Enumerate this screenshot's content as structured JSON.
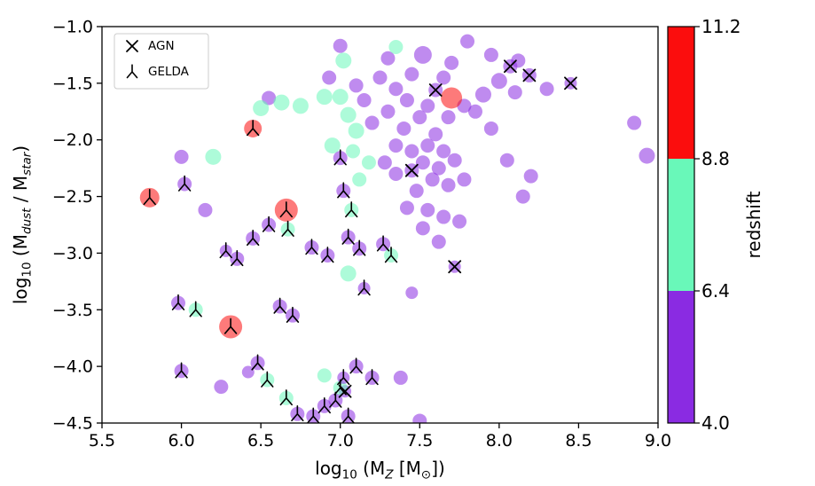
{
  "chart_data": {
    "type": "scatter",
    "title": "",
    "xlabel_parts": [
      [
        "log",
        0
      ],
      [
        "10",
        1
      ],
      [
        " (M",
        0
      ],
      [
        "Z",
        2
      ],
      [
        " [M",
        0
      ],
      [
        "⊙",
        1
      ],
      [
        "])",
        0
      ]
    ],
    "ylabel_parts": [
      [
        "log",
        0
      ],
      [
        "10",
        1
      ],
      [
        " (M",
        0
      ],
      [
        "dust",
        2
      ],
      [
        " / M",
        0
      ],
      [
        "star",
        2
      ],
      [
        ")",
        0
      ]
    ],
    "xlim": [
      5.5,
      9.0
    ],
    "ylim": [
      -4.5,
      -1.0
    ],
    "xticks": [
      5.5,
      6.0,
      6.5,
      7.0,
      7.5,
      8.0,
      8.5,
      9.0
    ],
    "xtick_labels": [
      "5.5",
      "6.0",
      "6.5",
      "7.0",
      "7.5",
      "8.0",
      "8.5",
      "9.0"
    ],
    "yticks": [
      -1.0,
      -1.5,
      -2.0,
      -2.5,
      -3.0,
      -3.5,
      -4.0,
      -4.5
    ],
    "ytick_labels": [
      "−1.0",
      "−1.5",
      "−2.0",
      "−2.5",
      "−3.0",
      "−3.5",
      "−4.0",
      "−4.5"
    ],
    "grid": false,
    "point_alpha": 0.55,
    "marker_color": "#000000",
    "colors": {
      "low": "#8A2BE2",
      "mid": "#69F8B9",
      "high": "#FB0D0D"
    },
    "legend": {
      "position": "upper-left",
      "entries": [
        {
          "label": "AGN",
          "marker": "x"
        },
        {
          "label": "GELDA",
          "marker": "tri"
        }
      ]
    },
    "colorbar": {
      "label": "redshift",
      "min": 4.0,
      "max": 11.2,
      "ticks": [
        4.0,
        6.4,
        8.8,
        11.2
      ],
      "tick_labels": [
        "4.0",
        "6.4",
        "8.8",
        "11.2"
      ],
      "segments": [
        {
          "range": [
            4.0,
            6.4
          ],
          "color": "#8A2BE2"
        },
        {
          "range": [
            6.4,
            8.8
          ],
          "color": "#69F8B9"
        },
        {
          "range": [
            8.8,
            11.2
          ],
          "color": "#FB0D0D"
        }
      ]
    },
    "points_format": [
      "x",
      "y",
      "color_bin(0=z4-6.4,1=z6.4-8.8,2=z8.8-11.2)",
      "radius_px",
      "marker(0=none,1=AGN_x,2=GELDA_tri)"
    ],
    "points": [
      [
        7.45,
        -2.27,
        0,
        8,
        1
      ],
      [
        7.6,
        -1.56,
        0,
        8,
        1
      ],
      [
        8.07,
        -1.35,
        0,
        8,
        1
      ],
      [
        8.19,
        -1.43,
        0,
        8,
        1
      ],
      [
        8.45,
        -1.5,
        0,
        7,
        1
      ],
      [
        7.72,
        -3.12,
        0,
        7,
        1
      ],
      [
        7.03,
        -4.22,
        0,
        7,
        1
      ],
      [
        5.8,
        -2.51,
        2,
        11,
        2
      ],
      [
        6.45,
        -1.9,
        2,
        10,
        2
      ],
      [
        6.66,
        -2.62,
        2,
        13,
        2
      ],
      [
        6.31,
        -3.65,
        2,
        13,
        2
      ],
      [
        6.02,
        -2.39,
        0,
        8,
        2
      ],
      [
        6.55,
        -2.75,
        0,
        8,
        2
      ],
      [
        6.67,
        -2.79,
        1,
        8,
        2
      ],
      [
        6.45,
        -2.87,
        0,
        8,
        2
      ],
      [
        6.35,
        -3.05,
        0,
        8,
        2
      ],
      [
        6.28,
        -2.98,
        0,
        7,
        2
      ],
      [
        6.82,
        -2.95,
        0,
        8,
        2
      ],
      [
        6.92,
        -3.02,
        0,
        8,
        2
      ],
      [
        7.05,
        -2.86,
        0,
        8,
        2
      ],
      [
        7.12,
        -2.96,
        0,
        8,
        2
      ],
      [
        7.27,
        -2.92,
        0,
        8,
        2
      ],
      [
        7.32,
        -3.02,
        1,
        8,
        2
      ],
      [
        7.0,
        -2.16,
        0,
        8,
        2
      ],
      [
        7.02,
        -2.45,
        0,
        8,
        2
      ],
      [
        7.07,
        -2.62,
        1,
        8,
        2
      ],
      [
        7.15,
        -3.31,
        0,
        7,
        2
      ],
      [
        5.98,
        -3.44,
        0,
        8,
        2
      ],
      [
        6.09,
        -3.5,
        1,
        8,
        2
      ],
      [
        6.62,
        -3.47,
        0,
        8,
        2
      ],
      [
        6.7,
        -3.55,
        0,
        8,
        2
      ],
      [
        6.0,
        -4.04,
        0,
        8,
        2
      ],
      [
        6.48,
        -3.97,
        0,
        8,
        2
      ],
      [
        6.54,
        -4.12,
        1,
        8,
        2
      ],
      [
        6.66,
        -4.28,
        1,
        8,
        2
      ],
      [
        6.73,
        -4.42,
        0,
        8,
        2
      ],
      [
        6.83,
        -4.44,
        0,
        8,
        2
      ],
      [
        6.9,
        -4.35,
        0,
        8,
        2
      ],
      [
        6.97,
        -4.3,
        0,
        8,
        2
      ],
      [
        7.0,
        -4.19,
        1,
        8,
        2
      ],
      [
        7.05,
        -4.44,
        0,
        8,
        2
      ],
      [
        7.1,
        -4.0,
        0,
        8,
        2
      ],
      [
        7.2,
        -4.1,
        0,
        8,
        2
      ],
      [
        7.02,
        -4.1,
        0,
        7,
        2
      ],
      [
        7.0,
        -1.17,
        0,
        8,
        0
      ],
      [
        7.3,
        -1.28,
        0,
        8,
        0
      ],
      [
        7.52,
        -1.25,
        0,
        10,
        0
      ],
      [
        7.8,
        -1.13,
        0,
        8,
        0
      ],
      [
        7.95,
        -1.25,
        0,
        8,
        0
      ],
      [
        7.7,
        -1.32,
        0,
        8,
        0
      ],
      [
        7.45,
        -1.42,
        0,
        8,
        0
      ],
      [
        7.25,
        -1.45,
        0,
        8,
        0
      ],
      [
        6.93,
        -1.45,
        0,
        8,
        0
      ],
      [
        7.1,
        -1.52,
        0,
        8,
        0
      ],
      [
        7.35,
        -1.55,
        0,
        8,
        0
      ],
      [
        7.65,
        -1.45,
        0,
        8,
        0
      ],
      [
        8.0,
        -1.48,
        0,
        9,
        0
      ],
      [
        8.12,
        -1.3,
        0,
        8,
        0
      ],
      [
        8.3,
        -1.55,
        0,
        8,
        0
      ],
      [
        7.15,
        -1.65,
        0,
        8,
        0
      ],
      [
        7.42,
        -1.65,
        0,
        8,
        0
      ],
      [
        7.55,
        -1.7,
        0,
        8,
        0
      ],
      [
        7.78,
        -1.7,
        0,
        8,
        0
      ],
      [
        7.9,
        -1.6,
        0,
        9,
        0
      ],
      [
        8.1,
        -1.58,
        0,
        8,
        0
      ],
      [
        7.3,
        -1.75,
        0,
        8,
        0
      ],
      [
        7.5,
        -1.8,
        0,
        8,
        0
      ],
      [
        7.68,
        -1.8,
        0,
        8,
        0
      ],
      [
        7.85,
        -1.75,
        0,
        8,
        0
      ],
      [
        7.95,
        -1.9,
        0,
        8,
        0
      ],
      [
        7.6,
        -1.95,
        0,
        8,
        0
      ],
      [
        7.4,
        -1.9,
        0,
        8,
        0
      ],
      [
        7.2,
        -1.85,
        0,
        8,
        0
      ],
      [
        8.85,
        -1.85,
        0,
        8,
        0
      ],
      [
        8.93,
        -2.14,
        0,
        9,
        0
      ],
      [
        7.35,
        -2.05,
        0,
        8,
        0
      ],
      [
        7.45,
        -2.1,
        0,
        8,
        0
      ],
      [
        7.55,
        -2.05,
        0,
        8,
        0
      ],
      [
        7.65,
        -2.1,
        0,
        8,
        0
      ],
      [
        7.52,
        -2.2,
        0,
        8,
        0
      ],
      [
        7.62,
        -2.25,
        0,
        8,
        0
      ],
      [
        7.72,
        -2.18,
        0,
        8,
        0
      ],
      [
        7.58,
        -2.35,
        0,
        8,
        0
      ],
      [
        7.68,
        -2.4,
        0,
        8,
        0
      ],
      [
        7.78,
        -2.35,
        0,
        8,
        0
      ],
      [
        7.48,
        -2.45,
        0,
        8,
        0
      ],
      [
        8.05,
        -2.18,
        0,
        8,
        0
      ],
      [
        8.2,
        -2.32,
        0,
        8,
        0
      ],
      [
        8.15,
        -2.5,
        0,
        8,
        0
      ],
      [
        7.35,
        -2.3,
        0,
        8,
        0
      ],
      [
        7.28,
        -2.2,
        0,
        8,
        0
      ],
      [
        7.42,
        -2.6,
        0,
        8,
        0
      ],
      [
        7.55,
        -2.62,
        0,
        8,
        0
      ],
      [
        7.65,
        -2.68,
        0,
        8,
        0
      ],
      [
        7.52,
        -2.78,
        0,
        8,
        0
      ],
      [
        7.62,
        -2.9,
        0,
        8,
        0
      ],
      [
        7.75,
        -2.72,
        0,
        8,
        0
      ],
      [
        6.0,
        -2.15,
        0,
        8,
        0
      ],
      [
        6.15,
        -2.62,
        0,
        8,
        0
      ],
      [
        6.55,
        -1.63,
        0,
        8,
        0
      ],
      [
        7.45,
        -3.35,
        0,
        7,
        0
      ],
      [
        7.38,
        -4.1,
        0,
        8,
        0
      ],
      [
        7.5,
        -4.48,
        0,
        8,
        0
      ],
      [
        6.25,
        -4.18,
        0,
        8,
        0
      ],
      [
        6.42,
        -4.05,
        0,
        7,
        0
      ],
      [
        6.2,
        -2.15,
        1,
        9,
        0
      ],
      [
        6.5,
        -1.72,
        1,
        9,
        0
      ],
      [
        6.63,
        -1.67,
        1,
        9,
        0
      ],
      [
        6.75,
        -1.7,
        1,
        9,
        0
      ],
      [
        6.9,
        -1.62,
        1,
        9,
        0
      ],
      [
        7.02,
        -1.3,
        1,
        9,
        0
      ],
      [
        7.0,
        -1.62,
        1,
        9,
        0
      ],
      [
        7.05,
        -1.78,
        1,
        9,
        0
      ],
      [
        7.1,
        -1.92,
        1,
        9,
        0
      ],
      [
        6.95,
        -2.05,
        1,
        9,
        0
      ],
      [
        7.08,
        -2.1,
        1,
        8,
        0
      ],
      [
        7.18,
        -2.2,
        1,
        8,
        0
      ],
      [
        7.12,
        -2.35,
        1,
        8,
        0
      ],
      [
        7.05,
        -3.18,
        1,
        9,
        0
      ],
      [
        6.9,
        -4.08,
        1,
        8,
        0
      ],
      [
        7.35,
        -1.18,
        1,
        8,
        0
      ],
      [
        7.7,
        -1.63,
        2,
        12,
        0
      ]
    ]
  }
}
